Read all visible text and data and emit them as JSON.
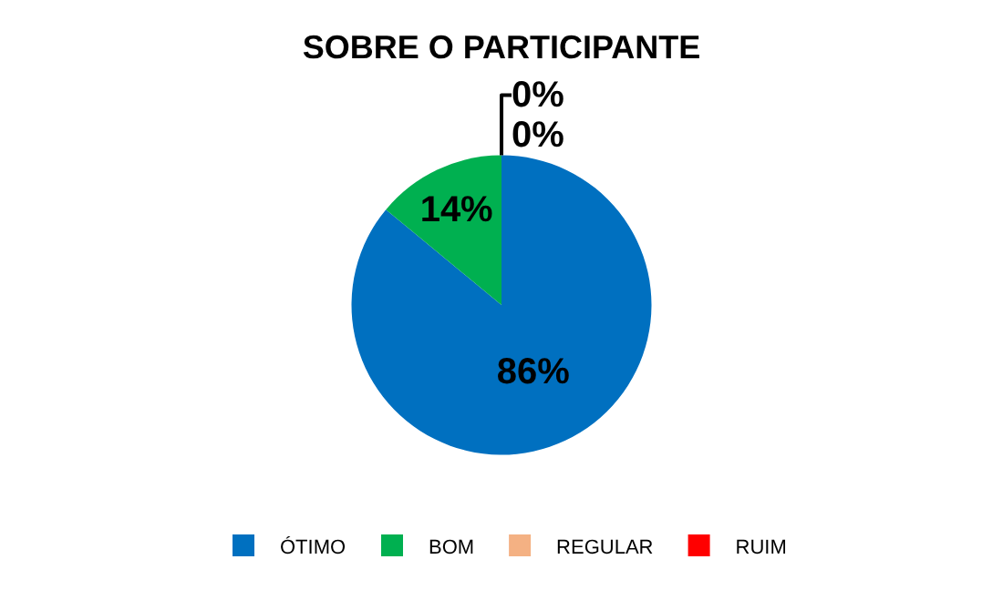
{
  "chart_data": {
    "type": "pie",
    "title": "SOBRE O PARTICIPANTE",
    "categories": [
      "ÓTIMO",
      "BOM",
      "REGULAR",
      "RUIM"
    ],
    "values": [
      86,
      14,
      0,
      0
    ],
    "colors": [
      "#0070c0",
      "#00b050",
      "#f4b183",
      "#ff0000"
    ],
    "value_labels": [
      "86%",
      "14%",
      "0%",
      "0%"
    ],
    "legend": "bottom"
  }
}
